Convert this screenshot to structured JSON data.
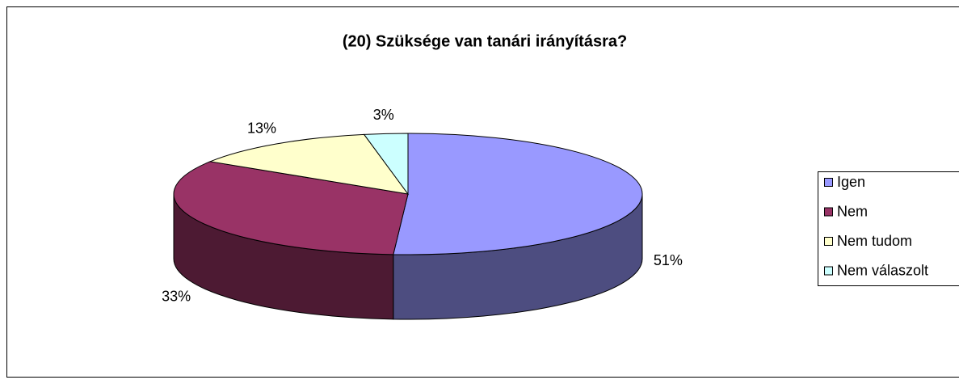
{
  "chart_data": {
    "type": "pie3d",
    "title": "(20) Szüksége van tanári irányításra?",
    "categories": [
      "Igen",
      "Nem",
      "Nem tudom",
      "Nem válaszolt"
    ],
    "values": [
      51,
      33,
      13,
      3
    ],
    "value_labels": [
      "51%",
      "33%",
      "13%",
      "3%"
    ],
    "colors": [
      "#9999ff",
      "#993366",
      "#ffffcc",
      "#ccffff"
    ],
    "legend": "right"
  }
}
